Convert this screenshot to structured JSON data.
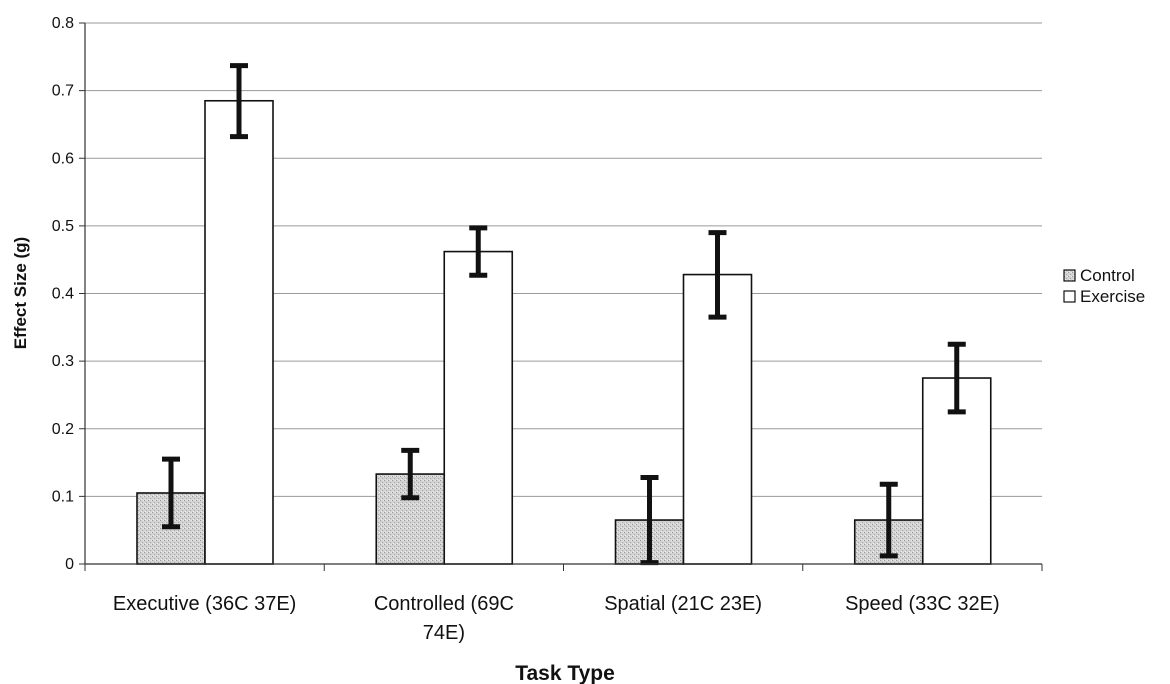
{
  "chart_data": {
    "type": "bar",
    "title": "",
    "xlabel": "Task Type",
    "ylabel": "Effect Size (g)",
    "ylim": [
      0,
      0.8
    ],
    "yticks": [
      0,
      0.1,
      0.2,
      0.3,
      0.4,
      0.5,
      0.6,
      0.7,
      0.8
    ],
    "ytick_labels": [
      "0",
      "0.1",
      "0.2",
      "0.3",
      "0.4",
      "0.5",
      "0.6",
      "0.7",
      "0.8"
    ],
    "grid": true,
    "legend_position": "right",
    "categories": [
      [
        "Executive (36C 37E)"
      ],
      [
        "Controlled (69C",
        "74E)"
      ],
      [
        "Spatial (21C 23E)"
      ],
      [
        "Speed (33C 32E)"
      ]
    ],
    "series": [
      {
        "name": "Control",
        "color": "#cfcfcf",
        "pattern": "dotted-gray",
        "values": [
          0.105,
          0.133,
          0.065,
          0.065
        ],
        "error_low": [
          0.055,
          0.098,
          0.002,
          0.012
        ],
        "error_high": [
          0.155,
          0.168,
          0.128,
          0.118
        ]
      },
      {
        "name": "Exercise",
        "color": "#ffffff",
        "pattern": "none",
        "values": [
          0.685,
          0.462,
          0.428,
          0.275
        ],
        "error_low": [
          0.632,
          0.427,
          0.365,
          0.225
        ],
        "error_high": [
          0.737,
          0.497,
          0.49,
          0.325
        ]
      }
    ]
  }
}
